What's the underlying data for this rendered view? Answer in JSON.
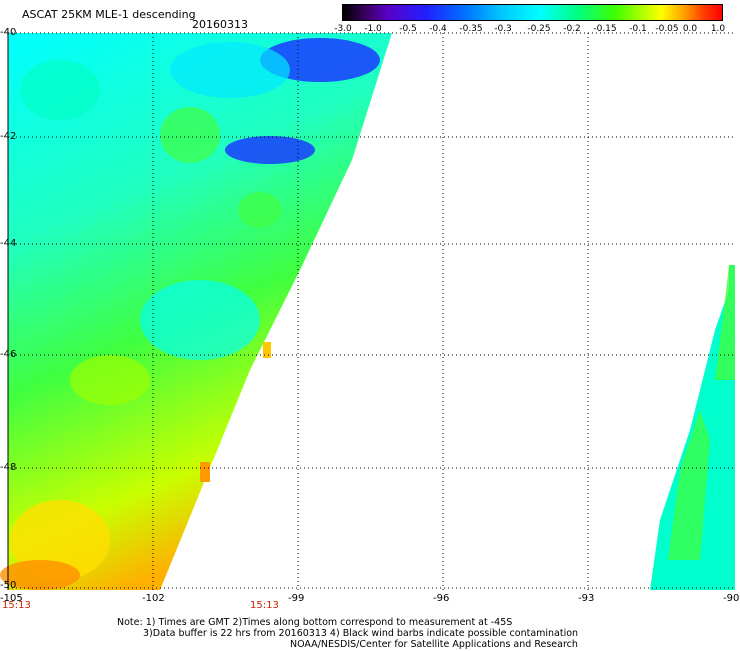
{
  "title": "ASCAT 25KM MLE-1 descending",
  "date": "20160313",
  "colorbar": {
    "tick_labels": [
      "-3.0",
      "-1.0",
      "-0.5",
      "-0.4",
      "-0.35",
      "-0.3",
      "-0.25",
      "-0.2",
      "-0.15",
      "-0.1",
      "-0.05",
      "0.0",
      "1.0"
    ],
    "colors": [
      "#000000",
      "#3a0060",
      "#5a00c8",
      "#2020ff",
      "#0070ff",
      "#00c8ff",
      "#00ffff",
      "#00ff80",
      "#40ff00",
      "#a0ff00",
      "#ffff00",
      "#ffa000",
      "#ff4000",
      "#ff0000"
    ]
  },
  "map": {
    "lat_labels": [
      "-40",
      "-42",
      "-44",
      "-46",
      "-48",
      "-50"
    ],
    "lon_labels": [
      "-105",
      "-102",
      "-99",
      "-96",
      "-93",
      "-90"
    ],
    "lat_range": [
      -50,
      -40
    ],
    "lon_range": [
      -105,
      -90
    ],
    "times": [
      "15:13",
      "15:13"
    ],
    "grid": true,
    "gridline_color": "#000000"
  },
  "notes": [
    "Note: 1) Times are GMT 2)Times along bottom correspond to measurement at -45S",
    "3)Data buffer is 22 hrs from 20160313 4) Black wind barbs indicate possible contamination",
    "NOAA/NESDIS/Center for Satellite Applications and Research"
  ]
}
